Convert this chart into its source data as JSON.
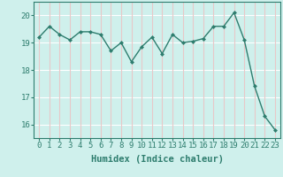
{
  "x": [
    0,
    1,
    2,
    3,
    4,
    5,
    6,
    7,
    8,
    9,
    10,
    11,
    12,
    13,
    14,
    15,
    16,
    17,
    18,
    19,
    20,
    21,
    22,
    23
  ],
  "y": [
    19.2,
    19.6,
    19.3,
    19.1,
    19.4,
    19.4,
    19.3,
    18.7,
    19.0,
    18.3,
    18.85,
    19.2,
    18.6,
    19.3,
    19.0,
    19.05,
    19.15,
    19.6,
    19.6,
    20.1,
    19.1,
    17.4,
    16.3,
    15.8
  ],
  "line_color": "#2e7d6e",
  "marker": "D",
  "marker_size": 2.5,
  "line_width": 1.0,
  "bg_color": "#cff0ec",
  "hgrid_color": "#ffffff",
  "vgrid_color": "#e8c8c8",
  "xlabel": "Humidex (Indice chaleur)",
  "ylim": [
    15.5,
    20.5
  ],
  "xlim": [
    -0.5,
    23.5
  ],
  "yticks": [
    16,
    17,
    18,
    19,
    20
  ],
  "xticks": [
    0,
    1,
    2,
    3,
    4,
    5,
    6,
    7,
    8,
    9,
    10,
    11,
    12,
    13,
    14,
    15,
    16,
    17,
    18,
    19,
    20,
    21,
    22,
    23
  ],
  "xlabel_fontsize": 7.5,
  "tick_fontsize": 6.5
}
